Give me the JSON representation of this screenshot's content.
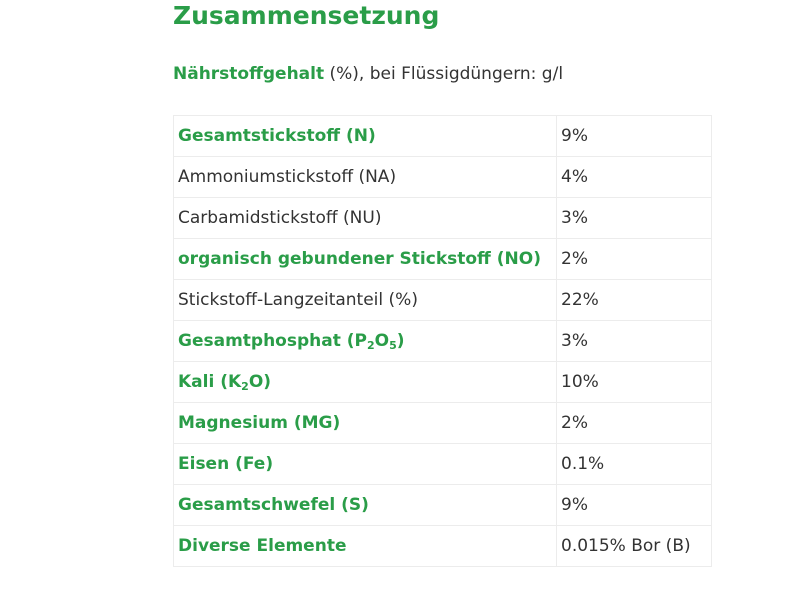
{
  "title": "Zusammensetzung",
  "subtitle": {
    "label": "Nährstoffgehalt",
    "suffix": " (%), bei Flüssigdüngern: g/l"
  },
  "rows": [
    {
      "name": "Gesamtstickstoff (N)",
      "value": "9%",
      "highlight": true
    },
    {
      "name": "Ammoniumstickstoff (NA)",
      "value": "4%",
      "highlight": false
    },
    {
      "name": "Carbamidstickstoff (NU)",
      "value": "3%",
      "highlight": false
    },
    {
      "name": "organisch gebundener Stickstoff (NO)",
      "value": "2%",
      "highlight": true
    },
    {
      "name": "Stickstoff-Langzeitanteil (%)",
      "value": "22%",
      "highlight": false
    },
    {
      "name": "Gesamtphosphat (P₂O₅)",
      "name_parts": [
        "Gesamtphosphat (P",
        "2",
        "O",
        "5",
        ")"
      ],
      "value": "3%",
      "highlight": true
    },
    {
      "name": "Kali (K₂O)",
      "name_parts": [
        "Kali (K",
        "2",
        "O)"
      ],
      "value": "10%",
      "highlight": true
    },
    {
      "name": "Magnesium (MG)",
      "value": "2%",
      "highlight": true
    },
    {
      "name": "Eisen (Fe)",
      "value": "0.1%",
      "highlight": true
    },
    {
      "name": "Gesamtschwefel (S)",
      "value": "9%",
      "highlight": true
    },
    {
      "name": "Diverse Elemente",
      "value": "0.015% Bor (B)",
      "highlight": true
    }
  ],
  "colors": {
    "accent": "#2a9d48",
    "text": "#333333",
    "border": "#ececec"
  }
}
